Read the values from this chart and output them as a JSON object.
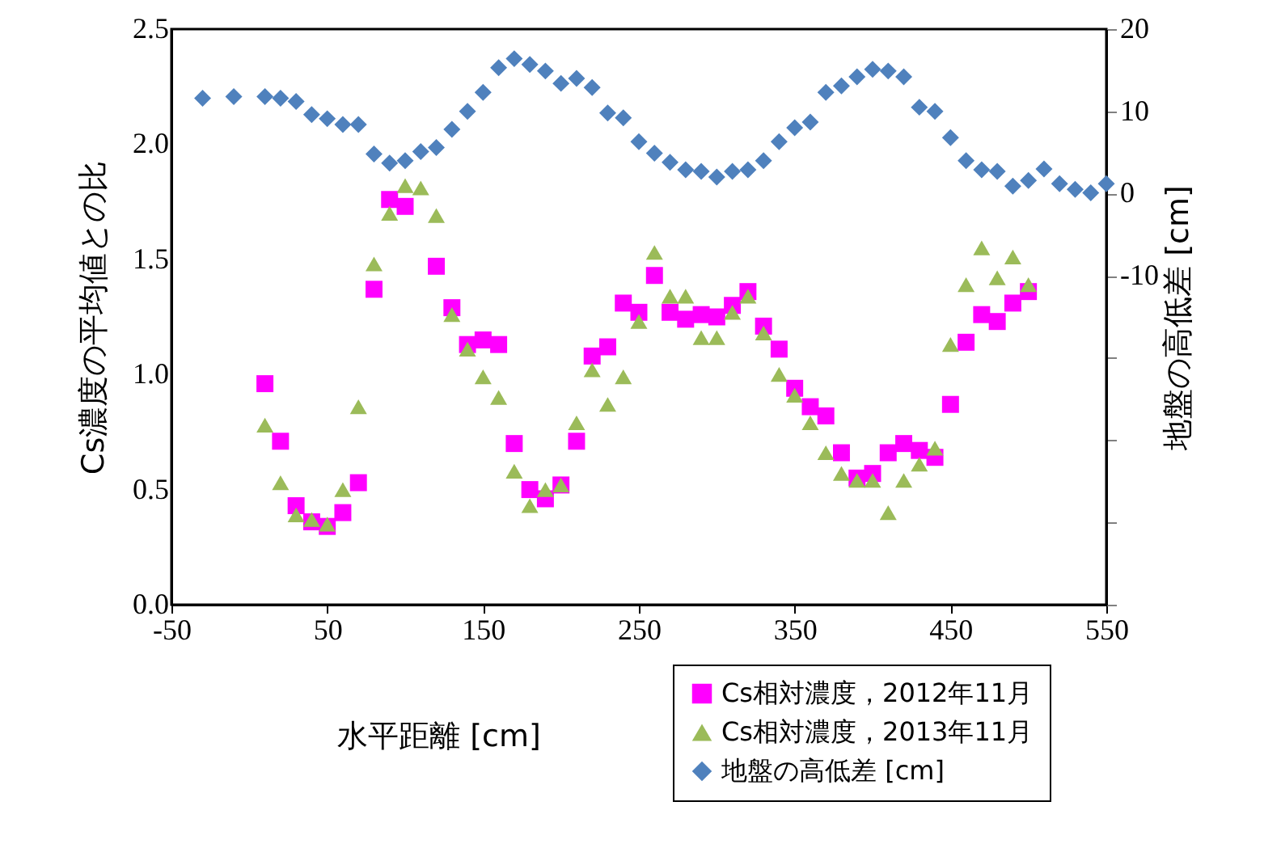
{
  "chart_data": {
    "type": "scatter",
    "xlabel": "水平距離  [cm]",
    "ylabel": "Cs濃度の平均値との比",
    "y2label": "地盤の高低差  [cm]",
    "xlim": [
      -50,
      550
    ],
    "xticks": [
      -50,
      50,
      150,
      250,
      350,
      450,
      550
    ],
    "ylim": [
      0,
      2.5
    ],
    "yticks": [
      {
        "value": 0,
        "label": "0.0"
      },
      0.5,
      {
        "value": 1,
        "label": "1.0"
      },
      1.5,
      {
        "value": 2,
        "label": "2.0"
      },
      2.5
    ],
    "y2lim": [
      -50,
      20
    ],
    "y2ticks": [
      {
        "value": -50,
        "label": null
      },
      {
        "value": -40,
        "label": null
      },
      {
        "value": -30,
        "label": null
      },
      {
        "value": -20,
        "label": null
      },
      -10,
      0,
      10,
      20
    ],
    "grid": false,
    "legend": "bottom right",
    "series": [
      {
        "name": "Cs相対濃度，2012年11月",
        "color": "#ff00ff",
        "marker": "square",
        "x": [
          10,
          20,
          30,
          40,
          50,
          60,
          70,
          80,
          90,
          100,
          120,
          130,
          140,
          150,
          160,
          170,
          180,
          190,
          200,
          210,
          220,
          230,
          240,
          250,
          260,
          270,
          280,
          290,
          300,
          310,
          320,
          330,
          340,
          350,
          360,
          370,
          380,
          390,
          400,
          410,
          420,
          430,
          440,
          450,
          460,
          470,
          480,
          490,
          500
        ],
        "values": [
          0.96,
          0.71,
          0.43,
          0.36,
          0.34,
          0.4,
          0.53,
          1.37,
          1.76,
          1.73,
          1.47,
          1.29,
          1.13,
          1.15,
          1.13,
          0.7,
          0.5,
          0.46,
          0.52,
          0.71,
          1.08,
          1.12,
          1.31,
          1.27,
          1.43,
          1.27,
          1.24,
          1.26,
          1.25,
          1.3,
          1.36,
          1.21,
          1.11,
          0.94,
          0.86,
          0.82,
          0.66,
          0.55,
          0.57,
          0.66,
          0.7,
          0.67,
          0.64,
          0.87,
          1.14,
          1.26,
          1.23,
          1.31,
          1.36
        ]
      },
      {
        "name": "Cs相対濃度，2013年11月",
        "color": "#9bbb59",
        "marker": "triangle",
        "x": [
          10,
          20,
          30,
          40,
          50,
          60,
          70,
          80,
          90,
          100,
          110,
          120,
          130,
          140,
          150,
          160,
          170,
          180,
          190,
          200,
          210,
          220,
          230,
          240,
          250,
          260,
          270,
          280,
          290,
          300,
          310,
          320,
          330,
          340,
          350,
          360,
          370,
          380,
          390,
          400,
          410,
          420,
          430,
          440,
          450,
          460,
          470,
          480,
          490,
          500
        ],
        "values": [
          0.78,
          0.53,
          0.39,
          0.37,
          0.35,
          0.5,
          0.86,
          1.48,
          1.7,
          1.82,
          1.81,
          1.69,
          1.26,
          1.11,
          0.99,
          0.9,
          0.58,
          0.43,
          0.5,
          0.52,
          0.79,
          1.02,
          0.87,
          0.99,
          1.23,
          1.53,
          1.34,
          1.34,
          1.16,
          1.16,
          1.27,
          1.34,
          1.18,
          1.0,
          0.91,
          0.79,
          0.66,
          0.57,
          0.54,
          0.54,
          0.4,
          0.54,
          0.61,
          0.68,
          1.13,
          1.39,
          1.55,
          1.42,
          1.51,
          1.39
        ]
      },
      {
        "name": "地盤の高低差  [cm]",
        "color": "#4f81bd",
        "marker": "diamond",
        "axis": "y2",
        "x": [
          -30,
          -10,
          10,
          20,
          30,
          40,
          50,
          60,
          70,
          80,
          90,
          100,
          110,
          120,
          130,
          140,
          150,
          160,
          170,
          180,
          190,
          200,
          210,
          220,
          230,
          240,
          250,
          260,
          270,
          280,
          290,
          300,
          310,
          320,
          330,
          340,
          350,
          360,
          370,
          380,
          390,
          400,
          410,
          420,
          430,
          440,
          450,
          460,
          470,
          480,
          490,
          500,
          510,
          520,
          530,
          540,
          550
        ],
        "values": [
          11.6,
          11.8,
          11.8,
          11.6,
          11.2,
          9.6,
          9.1,
          8.4,
          8.4,
          4.8,
          3.7,
          4.0,
          5.1,
          5.6,
          7.8,
          10.0,
          12.3,
          15.3,
          16.4,
          15.7,
          14.9,
          13.4,
          14.0,
          12.9,
          9.8,
          9.2,
          6.3,
          4.9,
          3.8,
          2.9,
          2.7,
          2.0,
          2.7,
          2.9,
          4.0,
          6.3,
          8.0,
          8.7,
          12.3,
          13.1,
          14.2,
          15.1,
          14.9,
          14.2,
          10.5,
          10.0,
          6.8,
          4.0,
          2.9,
          2.7,
          0.9,
          1.6,
          3.0,
          1.2,
          0.5,
          0.1,
          1.2
        ]
      }
    ]
  }
}
